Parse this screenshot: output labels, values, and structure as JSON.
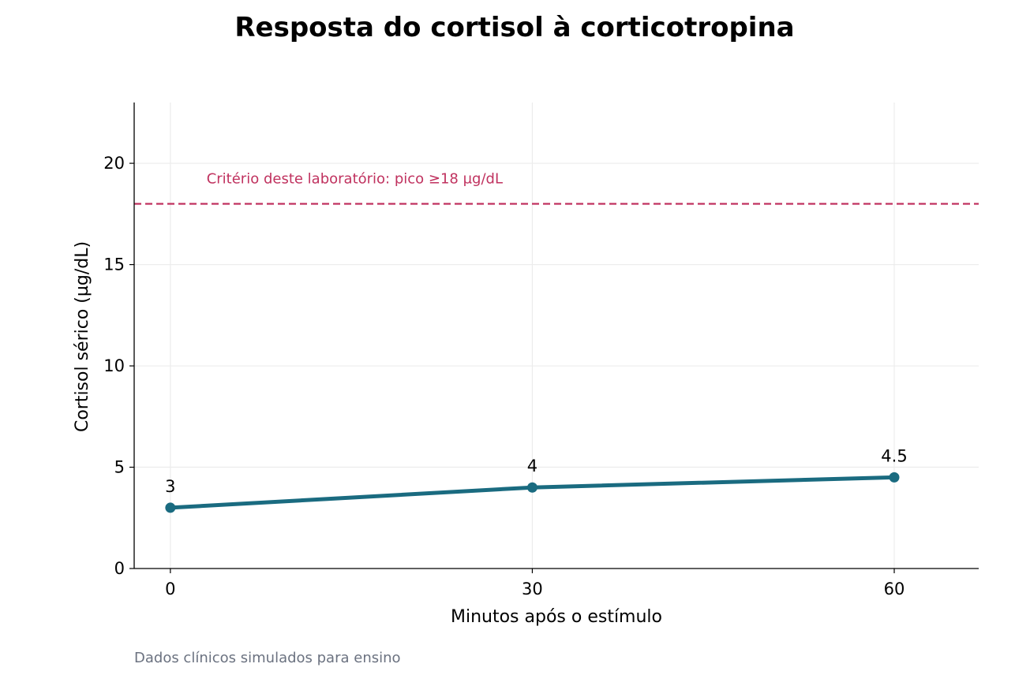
{
  "colors": {
    "series": "#1a6b80",
    "reference": "#c0325f",
    "grid": "#ececec",
    "axis": "#000000",
    "footnote": "#6b7280"
  },
  "footnote": "Dados clínicos simulados para ensino",
  "chart_data": {
    "type": "line",
    "title": "Resposta do cortisol à corticotropina",
    "xlabel": "Minutos após o estímulo",
    "ylabel": "Cortisol sérico (µg/dL)",
    "x": [
      0,
      30,
      60
    ],
    "xticks": [
      0,
      30,
      60
    ],
    "yticks": [
      0,
      5,
      10,
      15,
      20
    ],
    "xlim": [
      -3,
      67
    ],
    "ylim": [
      0,
      23
    ],
    "grid": true,
    "series": [
      {
        "values": [
          3,
          4,
          4.5
        ],
        "labels": [
          "3",
          "4",
          "4.5"
        ]
      }
    ],
    "reference_line": {
      "y": 18,
      "label": "Critério deste laboratório: pico ≥18 µg/dL",
      "style": "dashed"
    }
  }
}
